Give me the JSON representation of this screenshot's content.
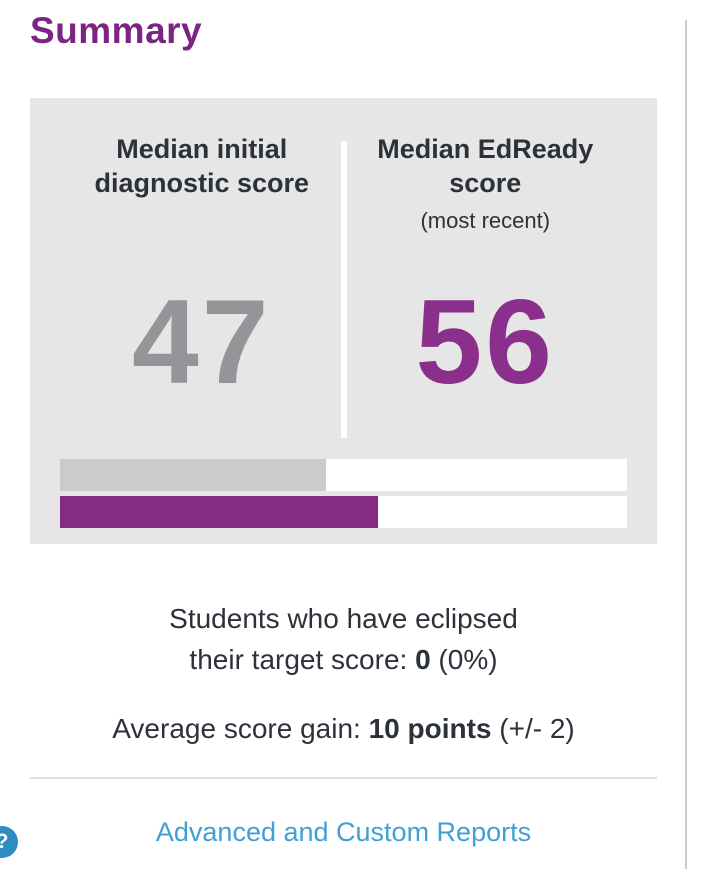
{
  "title": "Summary",
  "card": {
    "left": {
      "header": [
        "Median initial",
        "diagnostic score"
      ],
      "value": "47"
    },
    "right": {
      "header": [
        "Median EdReady",
        "score"
      ],
      "subtitle": "(most recent)",
      "value": "56"
    }
  },
  "bars": {
    "initial_pct": 47,
    "edready_pct": 56,
    "max": 100
  },
  "stats": {
    "eclipsed_line1": "Students who have eclipsed",
    "eclipsed_prefix": "their target score: ",
    "eclipsed_value": "0",
    "eclipsed_suffix": " (0%)",
    "gain_prefix": "Average score gain: ",
    "gain_value": "10 points",
    "gain_suffix": " (+/- 2)"
  },
  "footer": {
    "link_label": "Advanced and Custom Reports",
    "help_icon": "?"
  },
  "colors": {
    "title_purple": "#7c2483",
    "value_purple": "#8b2f8d",
    "bar_purple": "#862b84",
    "value_gray": "#939598",
    "bar_gray": "#cbcbcb",
    "card_background": "#e6e6e6",
    "text_dark": "#2c313a",
    "link_blue": "#3fa0d6",
    "help_blue": "#2e8cc2"
  }
}
